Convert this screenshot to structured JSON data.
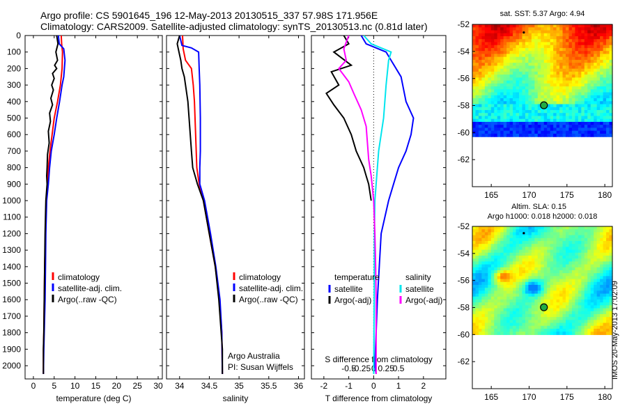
{
  "header": {
    "line1": "Argo profile: CS 5901645_196 12-May-2013 20130515_337 57.98S 171.956E",
    "line2": "Climatology: CARS2009. Satellite-adjusted climatology: synTS_20130513.nc (0.81d later)"
  },
  "timestamp_text": "IMOS 20-May-2013 17:02:09",
  "colors": {
    "climatology": "#ff0000",
    "satellite": "#0000ff",
    "argo": "#000000",
    "salinity_satellite": "#00e5ee",
    "salinity_argo": "#ff00ff"
  },
  "chart_data": [
    {
      "type": "line",
      "id": "temperature-profile",
      "xlabel": "temperature (deg C)",
      "xlim": [
        -2,
        31
      ],
      "ylim": [
        2080,
        0
      ],
      "xticks": [
        "0",
        "5",
        "10",
        "15",
        "20",
        "25",
        "30"
      ],
      "yticks": [
        "0",
        "100",
        "200",
        "300",
        "400",
        "500",
        "600",
        "700",
        "800",
        "900",
        "1000",
        "1100",
        "1200",
        "1300",
        "1400",
        "1500",
        "1600",
        "1700",
        "1800",
        "1900",
        "2000"
      ],
      "legend": [
        "climatology",
        "satellite-adj. clim.",
        "Argo(..raw -QC)"
      ],
      "series": [
        {
          "name": "climatology",
          "color": "#ff0000",
          "points": [
            [
              6.7,
              0
            ],
            [
              6.8,
              50
            ],
            [
              7.0,
              100
            ],
            [
              6.9,
              200
            ],
            [
              6.5,
              300
            ],
            [
              5.8,
              400
            ],
            [
              5.0,
              500
            ],
            [
              4.5,
              600
            ],
            [
              4.0,
              700
            ],
            [
              3.6,
              800
            ],
            [
              3.4,
              900
            ],
            [
              3.1,
              1000
            ],
            [
              2.9,
              1200
            ],
            [
              2.7,
              1400
            ],
            [
              2.6,
              1600
            ],
            [
              2.5,
              1800
            ],
            [
              2.4,
              1900
            ],
            [
              2.4,
              2050
            ]
          ]
        },
        {
          "name": "satellite-adj. clim.",
          "color": "#0000ff",
          "points": [
            [
              6.0,
              0
            ],
            [
              6.2,
              50
            ],
            [
              7.3,
              80
            ],
            [
              7.6,
              150
            ],
            [
              7.3,
              250
            ],
            [
              6.9,
              300
            ],
            [
              6.3,
              400
            ],
            [
              5.6,
              500
            ],
            [
              5.0,
              600
            ],
            [
              4.3,
              700
            ],
            [
              3.9,
              800
            ],
            [
              3.6,
              900
            ],
            [
              3.2,
              1000
            ],
            [
              3.0,
              1200
            ],
            [
              2.9,
              1400
            ],
            [
              2.8,
              1600
            ],
            [
              2.6,
              1800
            ],
            [
              2.5,
              1900
            ],
            [
              2.4,
              2050
            ]
          ]
        },
        {
          "name": "Argo(..raw -QC)",
          "color": "#000000",
          "points": [
            [
              5.6,
              0
            ],
            [
              5.9,
              50
            ],
            [
              5.4,
              100
            ],
            [
              5.8,
              150
            ],
            [
              5.1,
              180
            ],
            [
              5.6,
              200
            ],
            [
              4.6,
              230
            ],
            [
              5.0,
              260
            ],
            [
              4.4,
              300
            ],
            [
              4.8,
              330
            ],
            [
              4.2,
              380
            ],
            [
              4.6,
              420
            ],
            [
              3.9,
              470
            ],
            [
              4.1,
              520
            ],
            [
              3.6,
              580
            ],
            [
              3.8,
              650
            ],
            [
              3.4,
              720
            ],
            [
              3.3,
              800
            ],
            [
              3.2,
              850
            ],
            [
              3.3,
              900
            ],
            [
              3.0,
              1000
            ],
            [
              2.8,
              1200
            ],
            [
              2.7,
              1400
            ],
            [
              2.6,
              1600
            ],
            [
              2.5,
              1800
            ],
            [
              2.4,
              1900
            ],
            [
              2.4,
              2050
            ]
          ]
        }
      ]
    },
    {
      "type": "line",
      "id": "salinity-profile",
      "xlabel": "salinity",
      "xlim": [
        33.78,
        36.1
      ],
      "ylim": [
        2080,
        0
      ],
      "xticks": [
        "34",
        "34.5",
        "35",
        "35.5",
        "36"
      ],
      "legend": [
        "climatology",
        "satellite-adj. clim.",
        "Argo(..raw -QC)"
      ],
      "annotation": [
        "Argo Australia",
        "PI: Susan Wijffels"
      ],
      "series": [
        {
          "name": "climatology",
          "color": "#ff0000",
          "points": [
            [
              34.05,
              0
            ],
            [
              34.06,
              80
            ],
            [
              34.1,
              150
            ],
            [
              34.2,
              200
            ],
            [
              34.23,
              300
            ],
            [
              34.25,
              400
            ],
            [
              34.27,
              600
            ],
            [
              34.29,
              800
            ],
            [
              34.33,
              900
            ],
            [
              34.4,
              1000
            ],
            [
              34.5,
              1200
            ],
            [
              34.6,
              1400
            ],
            [
              34.67,
              1600
            ],
            [
              34.71,
              1800
            ],
            [
              34.72,
              2050
            ]
          ]
        },
        {
          "name": "satellite-adj. clim.",
          "color": "#0000ff",
          "points": [
            [
              34.0,
              0
            ],
            [
              34.04,
              60
            ],
            [
              34.2,
              75
            ],
            [
              34.32,
              100
            ],
            [
              34.33,
              200
            ],
            [
              34.34,
              300
            ],
            [
              34.35,
              500
            ],
            [
              34.35,
              700
            ],
            [
              34.34,
              800
            ],
            [
              34.34,
              900
            ],
            [
              34.42,
              1000
            ],
            [
              34.52,
              1200
            ],
            [
              34.61,
              1400
            ],
            [
              34.68,
              1600
            ],
            [
              34.71,
              1800
            ],
            [
              34.72,
              2050
            ]
          ]
        },
        {
          "name": "Argo(..raw -QC)",
          "color": "#000000",
          "points": [
            [
              34.0,
              0
            ],
            [
              33.96,
              50
            ],
            [
              33.99,
              100
            ],
            [
              34.02,
              150
            ],
            [
              34.04,
              200
            ],
            [
              34.08,
              250
            ],
            [
              34.1,
              300
            ],
            [
              34.12,
              350
            ],
            [
              34.14,
              400
            ],
            [
              34.16,
              500
            ],
            [
              34.18,
              600
            ],
            [
              34.2,
              700
            ],
            [
              34.22,
              800
            ],
            [
              34.3,
              900
            ],
            [
              34.4,
              1000
            ],
            [
              34.5,
              1200
            ],
            [
              34.6,
              1400
            ],
            [
              34.66,
              1600
            ],
            [
              34.7,
              1800
            ],
            [
              34.72,
              1900
            ],
            [
              34.72,
              2050
            ]
          ]
        }
      ]
    },
    {
      "type": "line",
      "id": "difference-profile",
      "xlabel": "T difference from climatology",
      "xlabel_top": "S difference from climatology",
      "xlim": [
        -2.5,
        2.9
      ],
      "ylim": [
        2080,
        0
      ],
      "xticks": [
        "-2",
        "-1",
        "0",
        "1",
        "2"
      ],
      "xticks_s": [
        "-0.5",
        "-0.25",
        "0",
        "0.25",
        "0.5"
      ],
      "legend_left": {
        "title": "temperature",
        "items": [
          "satellite",
          "Argo(-adj)"
        ]
      },
      "legend_right": {
        "title": "salinity",
        "items": [
          "satellite",
          "Argo(-adj)"
        ]
      },
      "series": [
        {
          "name": "temperature satellite",
          "color": "#0000ff",
          "points": [
            [
              -0.5,
              0
            ],
            [
              -0.3,
              50
            ],
            [
              0.5,
              100
            ],
            [
              0.7,
              150
            ],
            [
              1.1,
              250
            ],
            [
              1.3,
              400
            ],
            [
              1.6,
              500
            ],
            [
              1.5,
              600
            ],
            [
              1.3,
              700
            ],
            [
              1.0,
              800
            ],
            [
              0.8,
              900
            ],
            [
              0.6,
              1000
            ],
            [
              0.3,
              1200
            ],
            [
              0.15,
              1600
            ],
            [
              0.05,
              2000
            ],
            [
              0.1,
              2050
            ]
          ]
        },
        {
          "name": "temperature Argo(-adj)",
          "color": "#000000",
          "points": [
            [
              -1.2,
              0
            ],
            [
              -1.0,
              50
            ],
            [
              -1.6,
              100
            ],
            [
              -0.9,
              180
            ],
            [
              -1.7,
              220
            ],
            [
              -1.4,
              300
            ],
            [
              -1.9,
              350
            ],
            [
              -1.6,
              420
            ],
            [
              -1.2,
              500
            ],
            [
              -0.9,
              600
            ],
            [
              -0.7,
              700
            ],
            [
              -0.4,
              800
            ],
            [
              -0.3,
              850
            ],
            [
              -0.2,
              900
            ],
            [
              -0.1,
              1000
            ]
          ]
        },
        {
          "name": "salinity satellite",
          "color": "#00e5ee",
          "points": [
            [
              -0.4,
              0
            ],
            [
              -0.1,
              50
            ],
            [
              0.7,
              100
            ],
            [
              0.6,
              150
            ],
            [
              0.5,
              300
            ],
            [
              0.4,
              500
            ],
            [
              0.2,
              700
            ],
            [
              0.1,
              900
            ],
            [
              0.05,
              1000
            ],
            [
              0.03,
              1200
            ],
            [
              0.02,
              1600
            ],
            [
              0.0,
              2050
            ]
          ]
        },
        {
          "name": "salinity Argo(-adj)",
          "color": "#ff00ff",
          "points": [
            [
              -1.0,
              0
            ],
            [
              -1.2,
              80
            ],
            [
              -1.1,
              150
            ],
            [
              -1.4,
              200
            ],
            [
              -1.0,
              280
            ],
            [
              -0.8,
              350
            ],
            [
              -0.5,
              450
            ],
            [
              -0.3,
              550
            ],
            [
              -0.25,
              650
            ],
            [
              -0.2,
              750
            ],
            [
              -0.1,
              850
            ],
            [
              0.0,
              1000
            ],
            [
              0.05,
              1200
            ],
            [
              0.08,
              1400
            ],
            [
              0.1,
              1600
            ],
            [
              0.1,
              2050
            ]
          ]
        }
      ]
    },
    {
      "type": "heatmap",
      "id": "sst-map",
      "title": "sat. SST: 5.37 Argo: 4.94",
      "xticks": [
        "165",
        "170",
        "175",
        "180"
      ],
      "yticks": [
        "-52",
        "-54",
        "-56",
        "-58",
        "-60",
        "-62"
      ],
      "xlim": [
        162.5,
        181
      ],
      "ylim": [
        -64,
        -52
      ],
      "data_extent_lat": [
        -60.3,
        -52
      ],
      "profile_lon": 171.956,
      "profile_lat": -57.98,
      "marker": [
        169.3,
        -52.6
      ]
    },
    {
      "type": "heatmap",
      "id": "sla-map",
      "title": "Altim. SLA: 0.15",
      "subtitle": "Argo h1000: 0.018 h2000: 0.018",
      "xticks": [
        "165",
        "170",
        "175",
        "180"
      ],
      "yticks": [
        "-52",
        "-54",
        "-56",
        "-58",
        "-60",
        "-62"
      ],
      "xlim": [
        162.5,
        181
      ],
      "ylim": [
        -64,
        -52
      ],
      "data_extent_lat": [
        -60,
        -52
      ],
      "profile_lon": 171.956,
      "profile_lat": -57.98,
      "marker": [
        169.3,
        -52.5
      ]
    }
  ]
}
